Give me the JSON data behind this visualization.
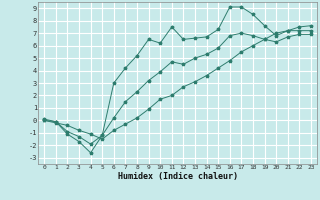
{
  "title": "",
  "xlabel": "Humidex (Indice chaleur)",
  "bg_color": "#c8eaea",
  "line_color": "#2e7d6e",
  "grid_color": "#ffffff",
  "xlim": [
    -0.5,
    23.5
  ],
  "ylim": [
    -3.5,
    9.5
  ],
  "xticks": [
    0,
    1,
    2,
    3,
    4,
    5,
    6,
    7,
    8,
    9,
    10,
    11,
    12,
    13,
    14,
    15,
    16,
    17,
    18,
    19,
    20,
    21,
    22,
    23
  ],
  "yticks": [
    -3,
    -2,
    -1,
    0,
    1,
    2,
    3,
    4,
    5,
    6,
    7,
    8,
    9
  ],
  "line1_x": [
    0,
    1,
    2,
    3,
    4,
    5,
    6,
    7,
    8,
    9,
    10,
    11,
    12,
    13,
    14,
    15,
    16,
    17,
    18,
    19,
    20,
    21,
    22,
    23
  ],
  "line1_y": [
    0.0,
    -0.1,
    -1.1,
    -1.7,
    -2.6,
    -1.2,
    3.0,
    4.2,
    5.2,
    6.5,
    6.2,
    7.5,
    6.5,
    6.6,
    6.7,
    7.3,
    9.1,
    9.1,
    8.5,
    7.6,
    6.8,
    7.2,
    7.2,
    7.2
  ],
  "line2_x": [
    0,
    1,
    2,
    3,
    4,
    5,
    6,
    7,
    8,
    9,
    10,
    11,
    12,
    13,
    14,
    15,
    16,
    17,
    18,
    19,
    20,
    21,
    22,
    23
  ],
  "line2_y": [
    0.1,
    -0.1,
    -0.9,
    -1.3,
    -1.9,
    -1.2,
    0.2,
    1.5,
    2.3,
    3.2,
    3.9,
    4.7,
    4.5,
    5.0,
    5.3,
    5.8,
    6.8,
    7.0,
    6.8,
    6.5,
    6.3,
    6.7,
    6.9,
    6.9
  ],
  "line3_x": [
    0,
    1,
    2,
    3,
    4,
    5,
    6,
    7,
    8,
    9,
    10,
    11,
    12,
    13,
    14,
    15,
    16,
    17,
    18,
    19,
    20,
    21,
    22,
    23
  ],
  "line3_y": [
    0.0,
    -0.2,
    -0.4,
    -0.8,
    -1.1,
    -1.5,
    -0.8,
    -0.3,
    0.2,
    0.9,
    1.7,
    2.0,
    2.7,
    3.1,
    3.6,
    4.2,
    4.8,
    5.5,
    6.0,
    6.5,
    7.0,
    7.2,
    7.5,
    7.6
  ]
}
